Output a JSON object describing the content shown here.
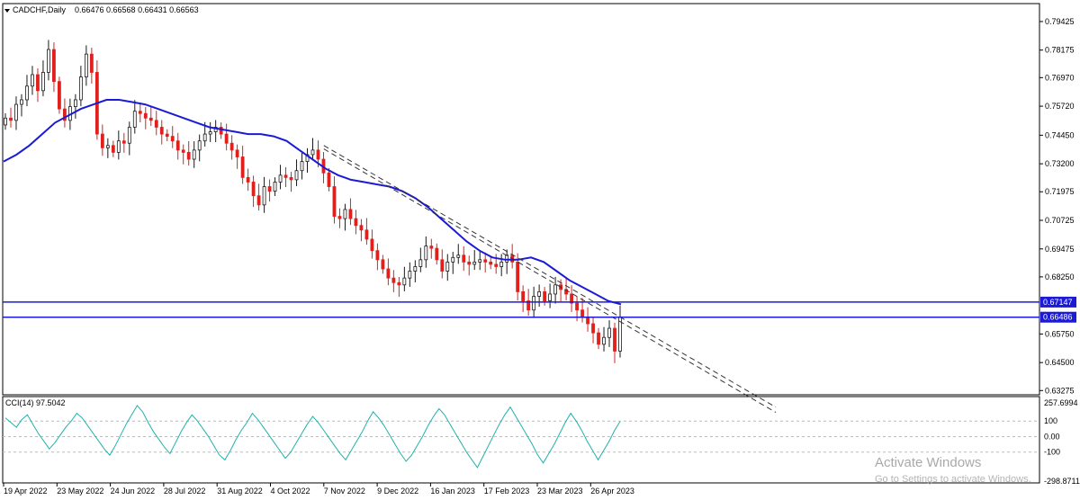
{
  "header": {
    "symbol": "CADCHF,Daily",
    "ohlc": "0.66476 0.66568 0.66431 0.66563"
  },
  "indicator": {
    "label": "CCI(14) 97.5042",
    "yticks": [
      "257.6994",
      "100",
      "0.00",
      "-100",
      "-298.8711"
    ]
  },
  "watermark": {
    "line1": "Activate Windows",
    "line2": "Go to Settings to activate Windows."
  },
  "colors": {
    "bull": "#1a1a1a",
    "bear": "#e0201c",
    "ma": "#1b1bd6",
    "hline": "#1b1bd6",
    "cci": "#20b2aa",
    "trend": "#333333"
  },
  "chart_data": [
    {
      "type": "candlestick",
      "price_ticks": [
        "0.79425",
        "0.78175",
        "0.76970",
        "0.75720",
        "0.74450",
        "0.73200",
        "0.71975",
        "0.70725",
        "0.69475",
        "0.68250",
        "0.65750",
        "0.64500",
        "0.63275"
      ],
      "ylim": [
        0.6309,
        0.8021
      ],
      "x_ticks": [
        "19 Apr 2022",
        "23 May 2022",
        "24 Jun 2022",
        "28 Jul 2022",
        "31 Aug 2022",
        "4 Oct 2022",
        "7 Nov 2022",
        "9 Dec 2022",
        "16 Jan 2023",
        "17 Feb 2023",
        "23 Mar 2023",
        "26 Apr 2023"
      ],
      "horizontal_levels": [
        {
          "label": "0.67147",
          "value": 0.67147
        },
        {
          "label": "0.66486",
          "value": 0.66486
        }
      ],
      "trend_channel": [
        {
          "from": [
            "7 Nov 2022",
            0.74
          ],
          "to": [
            "26 Apr 2023",
            0.666
          ]
        },
        {
          "from": [
            "7 Nov 2022",
            0.7385
          ],
          "to": [
            "26 Apr 2023",
            0.664
          ]
        }
      ],
      "moving_average": [
        0.733,
        0.736,
        0.74,
        0.745,
        0.75,
        0.753,
        0.756,
        0.758,
        0.76,
        0.76,
        0.759,
        0.758,
        0.756,
        0.754,
        0.752,
        0.75,
        0.748,
        0.747,
        0.746,
        0.745,
        0.745,
        0.744,
        0.742,
        0.738,
        0.734,
        0.73,
        0.727,
        0.725,
        0.724,
        0.723,
        0.722,
        0.72,
        0.717,
        0.713,
        0.708,
        0.703,
        0.698,
        0.694,
        0.691,
        0.69,
        0.69,
        0.691,
        0.689,
        0.685,
        0.681,
        0.678,
        0.675,
        0.672,
        0.6705
      ],
      "closes": [
        0.752,
        0.751,
        0.758,
        0.76,
        0.766,
        0.771,
        0.764,
        0.772,
        0.782,
        0.768,
        0.756,
        0.751,
        0.757,
        0.76,
        0.77,
        0.78,
        0.772,
        0.745,
        0.739,
        0.74,
        0.737,
        0.742,
        0.741,
        0.748,
        0.755,
        0.754,
        0.752,
        0.751,
        0.748,
        0.745,
        0.744,
        0.742,
        0.738,
        0.737,
        0.734,
        0.738,
        0.742,
        0.745,
        0.746,
        0.748,
        0.745,
        0.741,
        0.738,
        0.735,
        0.726,
        0.724,
        0.718,
        0.714,
        0.722,
        0.72,
        0.724,
        0.727,
        0.726,
        0.725,
        0.729,
        0.733,
        0.736,
        0.738,
        0.734,
        0.728,
        0.722,
        0.709,
        0.708,
        0.712,
        0.708,
        0.705,
        0.703,
        0.699,
        0.694,
        0.69,
        0.686,
        0.682,
        0.68,
        0.679,
        0.682,
        0.685,
        0.687,
        0.69,
        0.696,
        0.695,
        0.69,
        0.685,
        0.689,
        0.691,
        0.692,
        0.689,
        0.688,
        0.689,
        0.69,
        0.689,
        0.688,
        0.687,
        0.689,
        0.692,
        0.689,
        0.676,
        0.672,
        0.668,
        0.674,
        0.676,
        0.672,
        0.675,
        0.679,
        0.677,
        0.675,
        0.671,
        0.668,
        0.665,
        0.662,
        0.658,
        0.653,
        0.656,
        0.66,
        0.65,
        0.665
      ]
    },
    {
      "type": "line",
      "name": "CCI(14)",
      "ylim": [
        -298.8711,
        257.6994
      ],
      "reference_lines": [
        100,
        0,
        -100
      ],
      "values": [
        120,
        90,
        60,
        110,
        140,
        80,
        20,
        -30,
        -80,
        -40,
        10,
        60,
        100,
        150,
        120,
        70,
        20,
        -30,
        -80,
        -120,
        -60,
        10,
        80,
        140,
        200,
        160,
        90,
        30,
        -20,
        -70,
        -110,
        -40,
        30,
        90,
        140,
        100,
        50,
        0,
        -60,
        -120,
        -150,
        -90,
        -20,
        40,
        90,
        150,
        110,
        60,
        10,
        -40,
        -90,
        -140,
        -100,
        -40,
        20,
        80,
        130,
        90,
        40,
        -10,
        -60,
        -110,
        -150,
        -90,
        -30,
        30,
        100,
        160,
        120,
        70,
        10,
        -50,
        -110,
        -160,
        -120,
        -60,
        0,
        70,
        130,
        180,
        140,
        80,
        20,
        -40,
        -100,
        -150,
        -200,
        -130,
        -60,
        10,
        80,
        140,
        190,
        130,
        70,
        10,
        -50,
        -120,
        -170,
        -110,
        -50,
        20,
        90,
        150,
        100,
        40,
        -30,
        -90,
        -150,
        -90,
        -30,
        40,
        97.5
      ]
    }
  ]
}
